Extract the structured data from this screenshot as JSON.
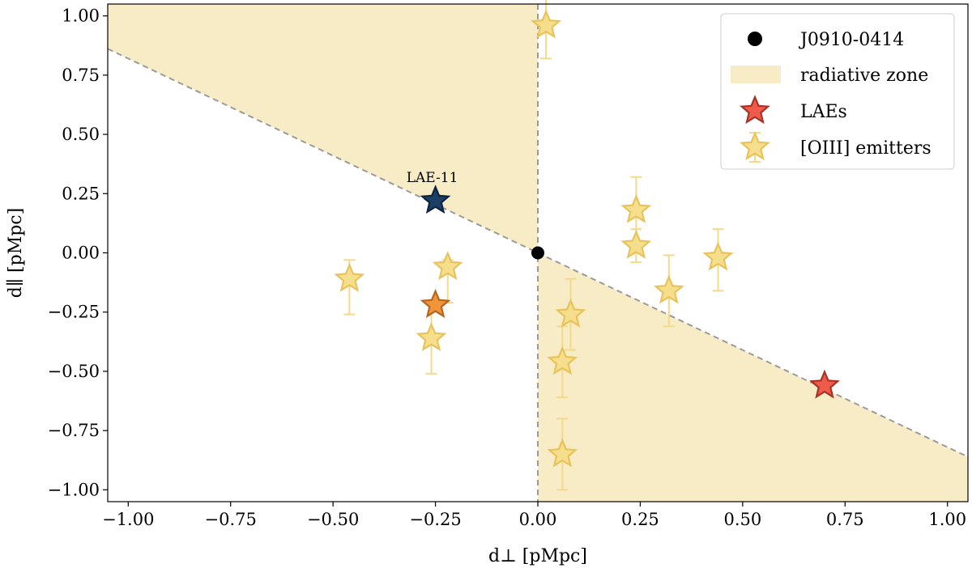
{
  "chart_data": {
    "type": "scatter",
    "xlabel": "d⊥ [pMpc]",
    "ylabel": "d∥ [pMpc]",
    "xlim": [
      -1.05,
      1.05
    ],
    "ylim": [
      -1.05,
      1.05
    ],
    "xticks": [
      -1.0,
      -0.75,
      -0.5,
      -0.25,
      0.0,
      0.25,
      0.5,
      0.75,
      1.0
    ],
    "yticks": [
      -1.0,
      -0.75,
      -0.5,
      -0.25,
      0.0,
      0.25,
      0.5,
      0.75,
      1.0
    ],
    "xtick_labels": [
      "−1.00",
      "−0.75",
      "−0.50",
      "−0.25",
      "0.00",
      "0.25",
      "0.50",
      "0.75",
      "1.00"
    ],
    "ytick_labels": [
      "−1.00",
      "−0.75",
      "−0.50",
      "−0.25",
      "0.00",
      "0.25",
      "0.50",
      "0.75",
      "1.00"
    ],
    "boundary_slope": -0.82,
    "quasar": {
      "name": "J0910-0414",
      "x": 0.0,
      "y": 0.0
    },
    "laes": [
      {
        "x": -0.25,
        "y": 0.22,
        "label": "LAE-11",
        "color": "#1c3f66"
      },
      {
        "x": -0.25,
        "y": -0.22,
        "label": "",
        "color": "#f0953a"
      },
      {
        "x": 0.7,
        "y": -0.56,
        "label": "",
        "color": "#ef5b4b"
      }
    ],
    "oiii_emitters": [
      {
        "x": 0.02,
        "y": 0.96,
        "err_lo": 0.14,
        "err_hi": 0.14
      },
      {
        "x": -0.46,
        "y": -0.11,
        "err_lo": 0.15,
        "err_hi": 0.08
      },
      {
        "x": -0.22,
        "y": -0.06,
        "err_lo": 0.15,
        "err_hi": 0.03
      },
      {
        "x": -0.26,
        "y": -0.36,
        "err_lo": 0.15,
        "err_hi": 0.15
      },
      {
        "x": 0.08,
        "y": -0.26,
        "err_lo": 0.15,
        "err_hi": 0.15
      },
      {
        "x": 0.06,
        "y": -0.46,
        "err_lo": 0.15,
        "err_hi": 0.15
      },
      {
        "x": 0.06,
        "y": -0.85,
        "err_lo": 0.15,
        "err_hi": 0.15
      },
      {
        "x": 0.24,
        "y": 0.18,
        "err_lo": 0.14,
        "err_hi": 0.14
      },
      {
        "x": 0.24,
        "y": 0.03,
        "err_lo": 0.07,
        "err_hi": 0.07
      },
      {
        "x": 0.32,
        "y": -0.16,
        "err_lo": 0.15,
        "err_hi": 0.15
      },
      {
        "x": 0.44,
        "y": -0.02,
        "err_lo": 0.14,
        "err_hi": 0.12
      }
    ],
    "legend": {
      "placement": "top-right",
      "entries": [
        {
          "key": "quasar",
          "label": "J0910-0414"
        },
        {
          "key": "zone",
          "label": "radiative zone"
        },
        {
          "key": "laes",
          "label": "LAEs"
        },
        {
          "key": "oiii",
          "label": "[OIII] emitters"
        }
      ]
    },
    "colors": {
      "zone_fill": "#f8ecc6",
      "boundary_line": "#9a9a9a",
      "oiii_fill": "#f6df8c",
      "oiii_edge": "#e8c25a",
      "oiii_err": "#f3d98a",
      "lae_edge_red": "#a83226",
      "lae_edge_orange": "#b5651d",
      "lae_edge_blue": "#0c2440",
      "quasar": "#000000"
    }
  }
}
